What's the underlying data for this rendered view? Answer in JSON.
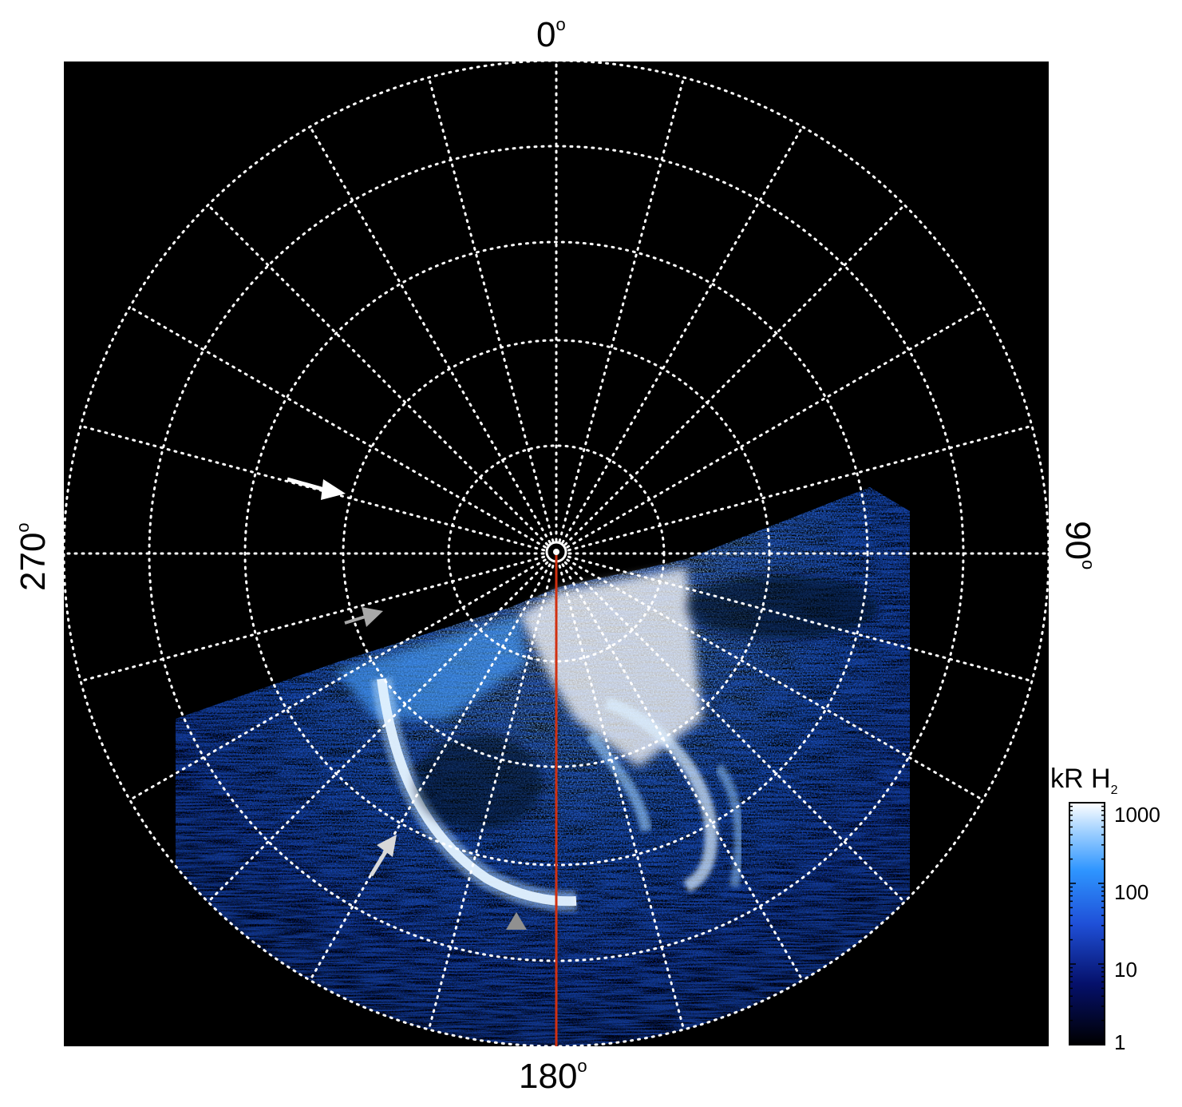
{
  "labels": {
    "top": "0",
    "right": "90",
    "bottom": "180",
    "left": "270",
    "degree_sign": "o"
  },
  "colorbar": {
    "title_main": "kR H",
    "title_sub": "2",
    "ticks": [
      "1000",
      "100",
      "10",
      "1"
    ]
  },
  "colors": {
    "background": "#000000",
    "grid": "#ffffff",
    "meridian_line": "#d03010",
    "aurora_bright": "#ffffff",
    "aurora_mid": "#2f8cff",
    "aurora_dark": "#0a1e7a"
  },
  "arrows": [
    {
      "color": "#ffffff",
      "direction": "points right toward dark region (upper left)"
    },
    {
      "color": "#a8a8a8",
      "direction": "points right toward emission edge"
    },
    {
      "color": "#d8d8d8",
      "direction": "points up toward main arc"
    },
    {
      "color": "#909090",
      "direction": "triangle pointing up"
    }
  ]
}
